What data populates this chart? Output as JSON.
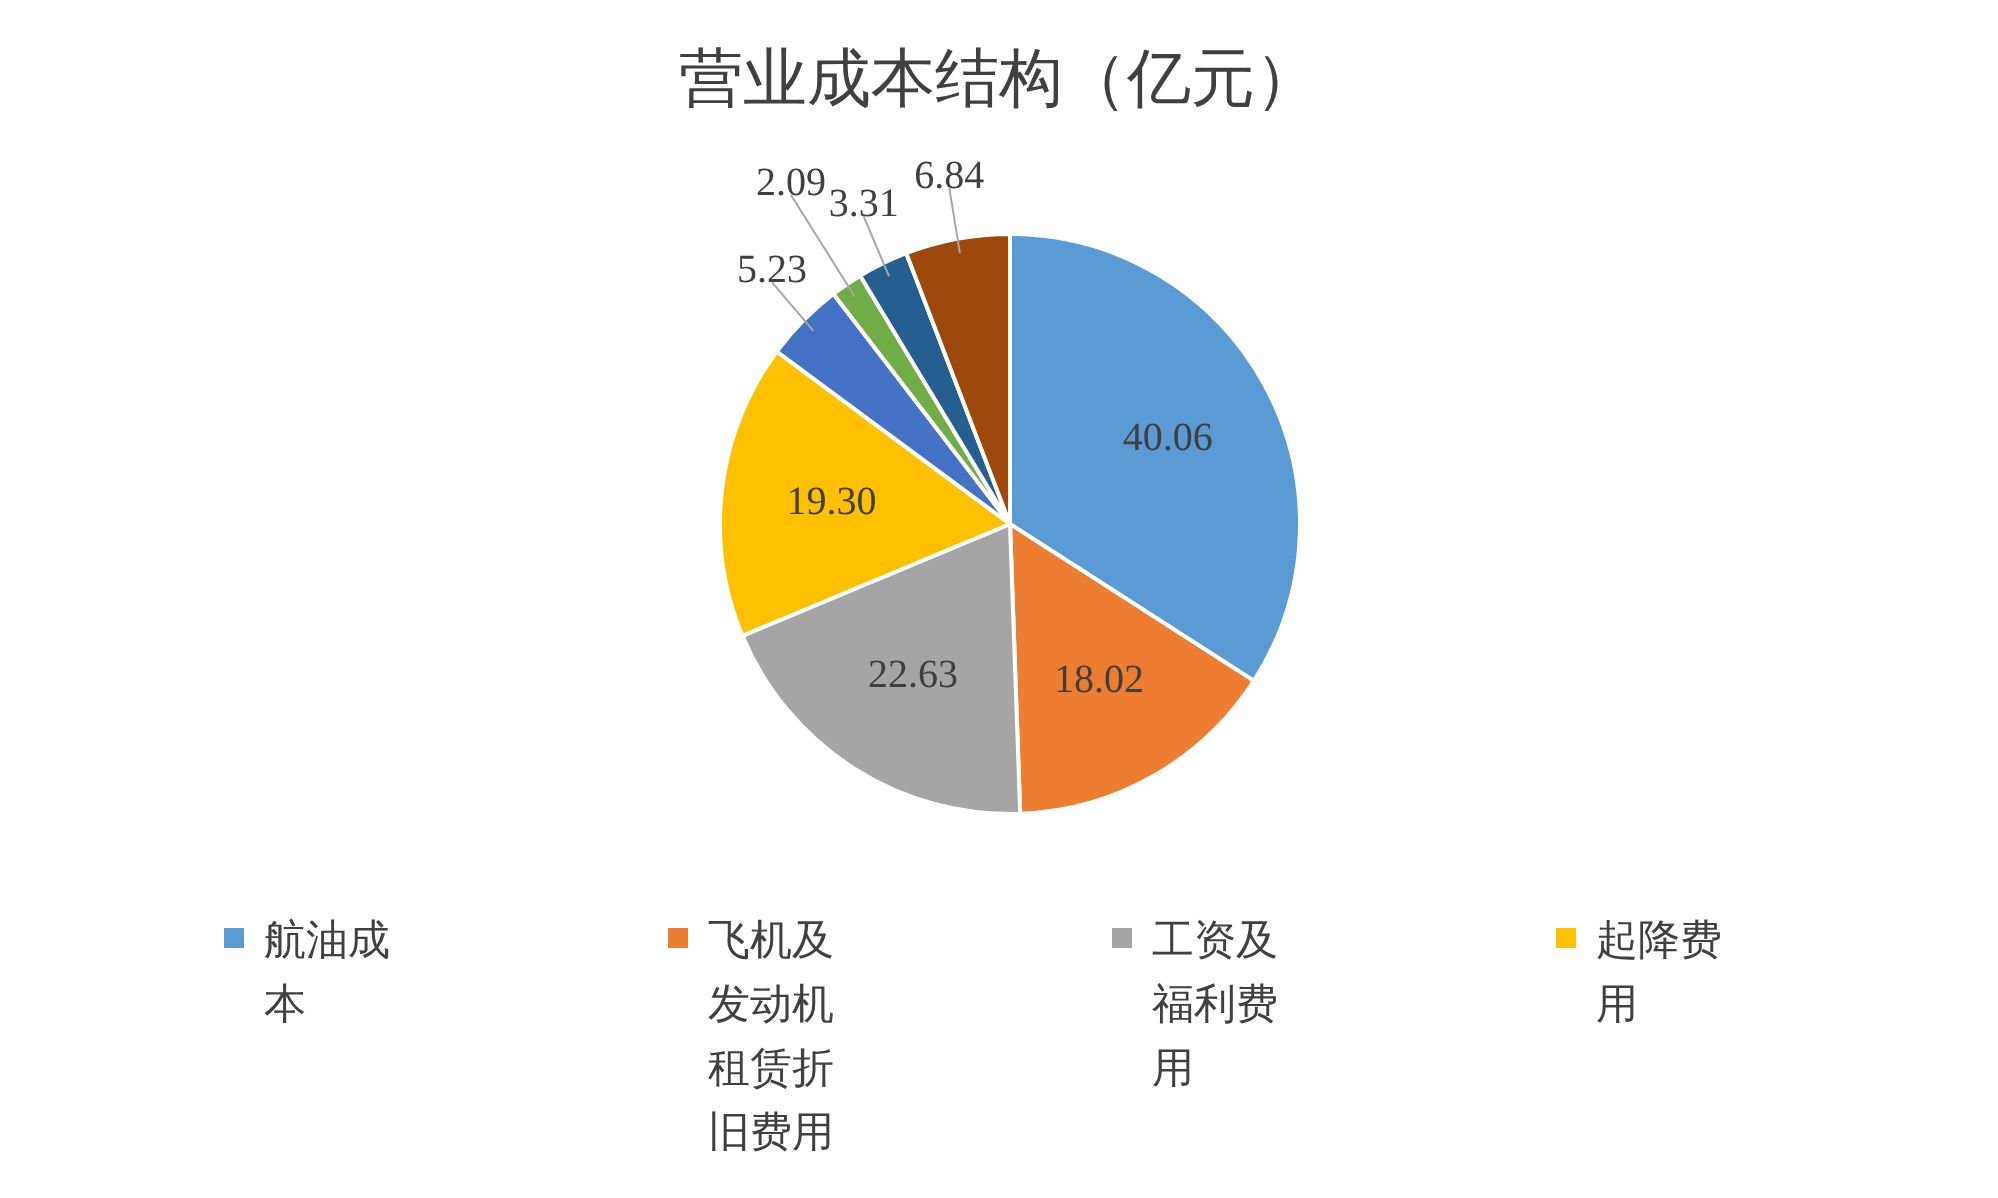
{
  "chart_data": {
    "type": "pie",
    "title": "营业成本结构（亿元）",
    "categories": [
      "航油成本",
      "飞机及发动机租赁折旧费用",
      "工资及福利费用",
      "起降费用",
      null,
      null,
      null,
      null
    ],
    "values": [
      40.06,
      18.02,
      22.63,
      19.3,
      5.23,
      2.09,
      3.31,
      6.84
    ],
    "colors": [
      "#5b9bd5",
      "#ed7d31",
      "#a5a5a5",
      "#ffc000",
      "#4472c4",
      "#70ad47",
      "#255e91",
      "#9e480e"
    ],
    "value_labels": [
      "40.06",
      "18.02",
      "22.63",
      "19.30",
      "5.23",
      "2.09",
      "3.31",
      "6.84"
    ],
    "legend": "bottom"
  }
}
